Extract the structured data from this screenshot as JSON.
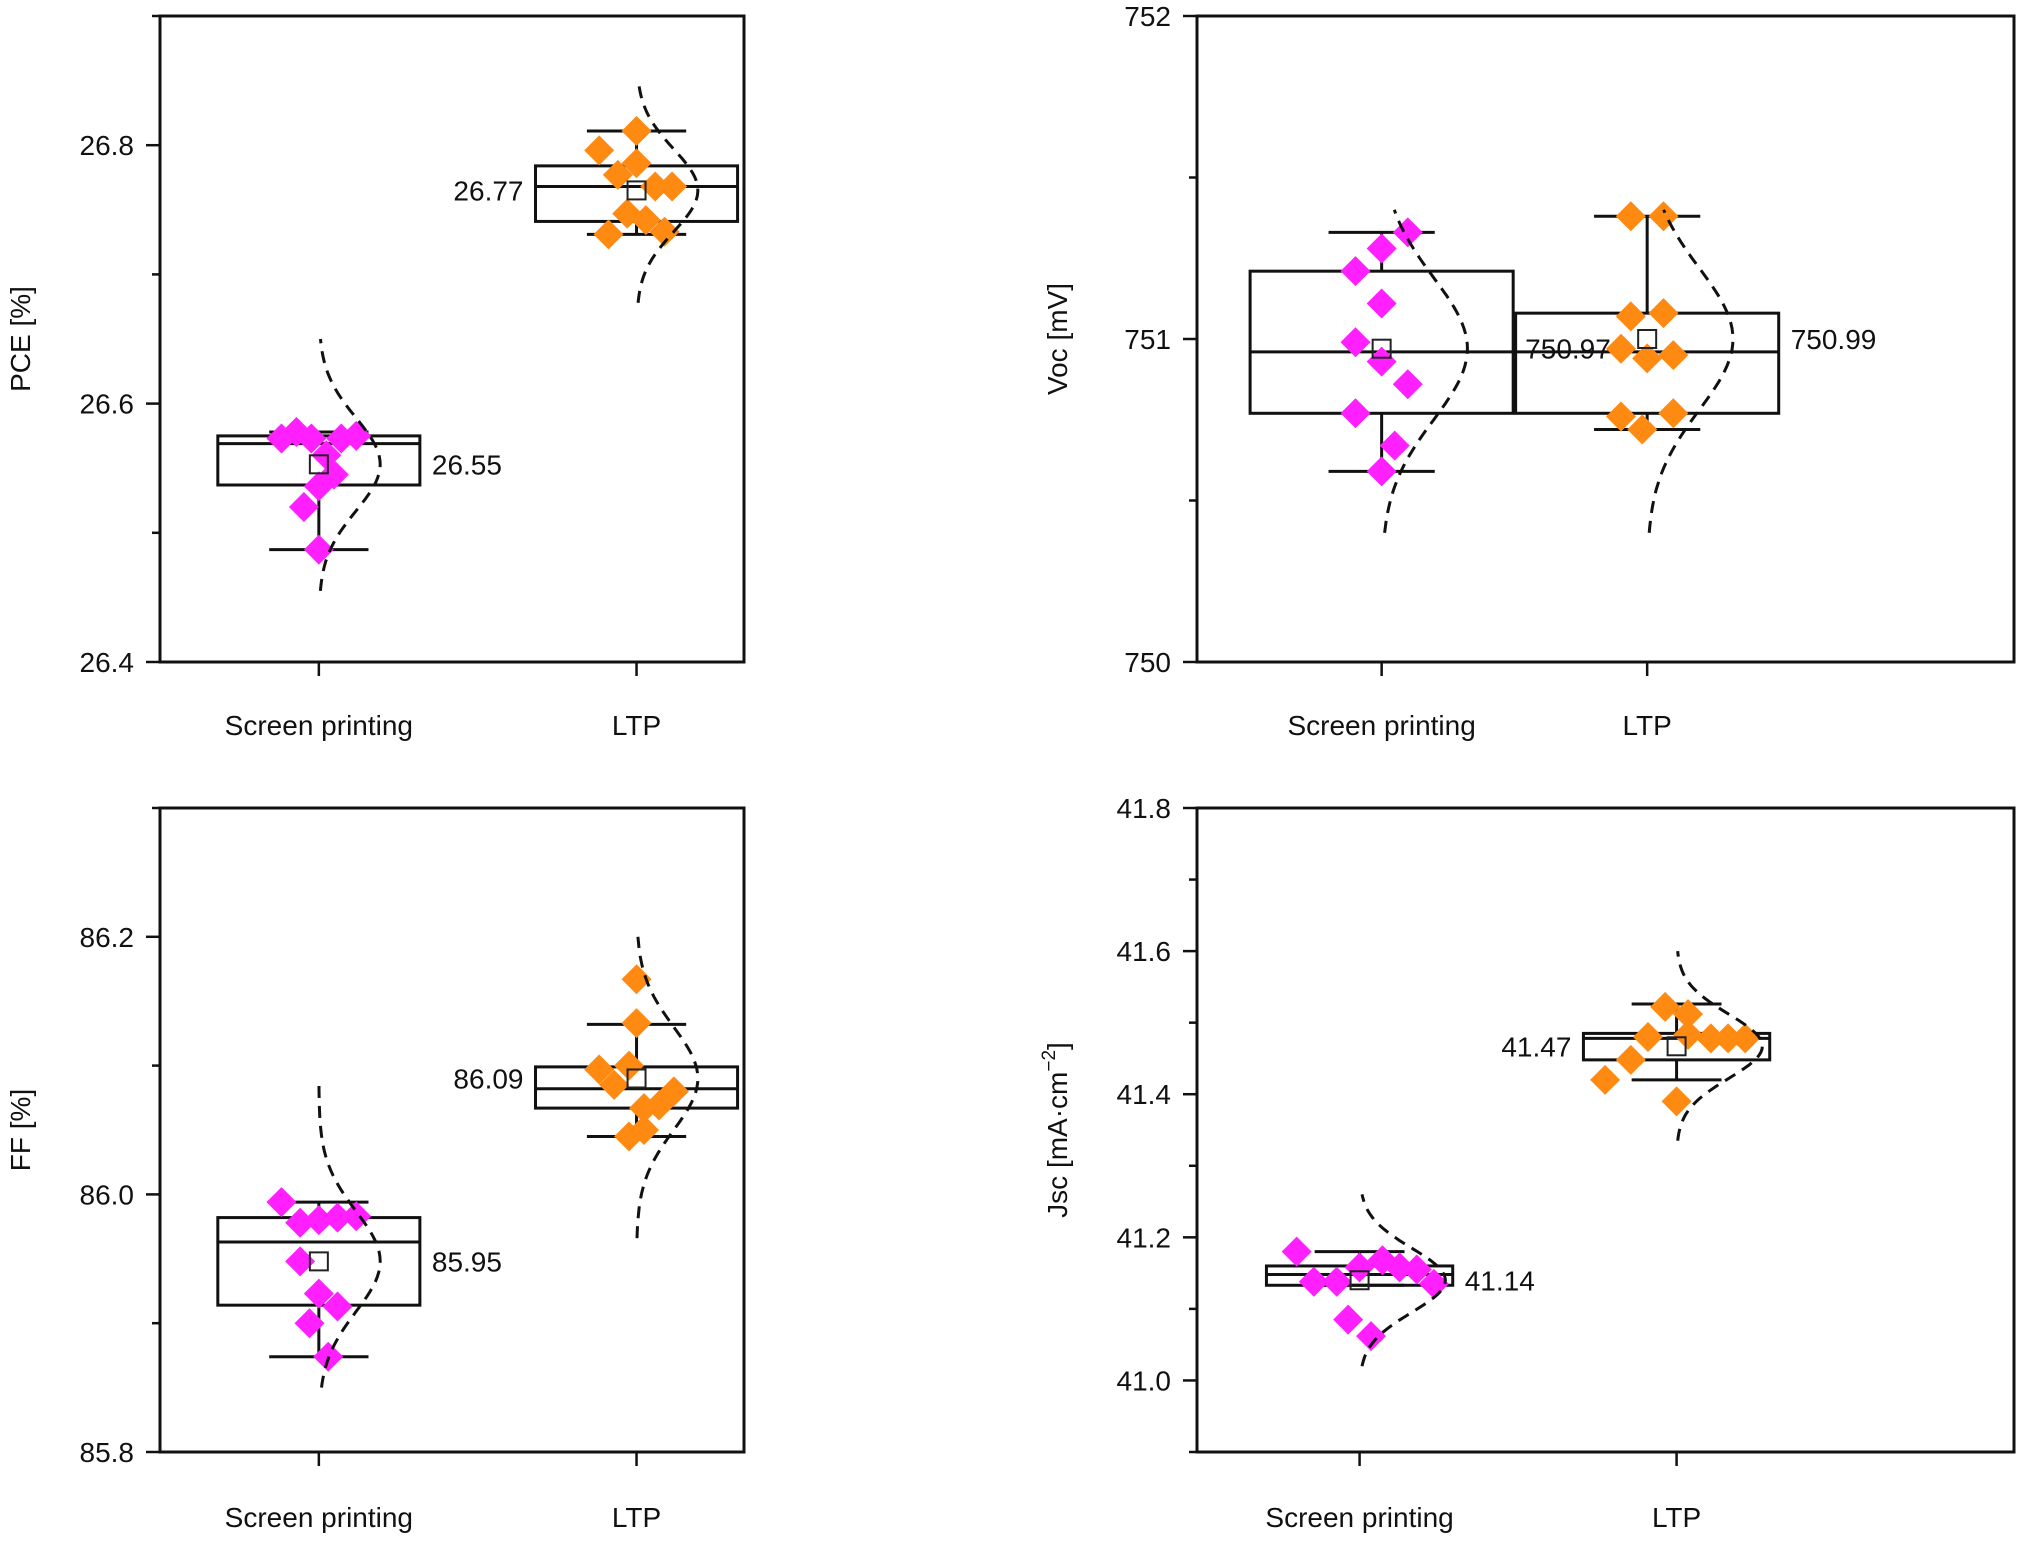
{
  "colors": {
    "screen_printing": "#ff1fff",
    "ltp": "#ff8a12",
    "axis": "#111111",
    "box": "#111111"
  },
  "chart_data": [
    {
      "id": "pce",
      "type": "box",
      "ylabel": "PCE [%]",
      "ylim": [
        26.4,
        26.9
      ],
      "yticks": [
        26.4,
        26.6,
        26.8
      ],
      "yticklabels": [
        "26.4",
        "26.6",
        "26.8"
      ],
      "minor_step": 0.1,
      "categories": [
        "Screen printing",
        "LTP"
      ],
      "groups": [
        {
          "name": "Screen printing",
          "color_key": "screen_printing",
          "mean": 26.553,
          "mean_label": "26.55",
          "label_side": "right",
          "box": {
            "q1": 26.537,
            "median": 26.569,
            "q3": 26.575,
            "whisker_low": 26.487,
            "whisker_high": 26.578
          },
          "points": [
            {
              "dx": -0.2,
              "y": 26.573
            },
            {
              "dx": -0.12,
              "y": 26.578
            },
            {
              "dx": -0.04,
              "y": 26.573
            },
            {
              "dx": 0.04,
              "y": 26.56
            },
            {
              "dx": 0.08,
              "y": 26.545
            },
            {
              "dx": 0.12,
              "y": 26.573
            },
            {
              "dx": 0.2,
              "y": 26.575
            },
            {
              "dx": -0.08,
              "y": 26.52
            },
            {
              "dx": 0.0,
              "y": 26.536
            },
            {
              "dx": 0.0,
              "y": 26.487
            }
          ],
          "dist": {
            "mu": 26.553,
            "sigma": 0.036,
            "ymin": 26.455,
            "ymax": 26.65
          }
        },
        {
          "name": "LTP",
          "color_key": "ltp",
          "mean": 26.765,
          "mean_label": "26.77",
          "label_side": "left",
          "box": {
            "q1": 26.741,
            "median": 26.768,
            "q3": 26.784,
            "whisker_low": 26.731,
            "whisker_high": 26.811
          },
          "points": [
            {
              "dx": -0.2,
              "y": 26.796
            },
            {
              "dx": -0.1,
              "y": 26.777
            },
            {
              "dx": 0.0,
              "y": 26.811
            },
            {
              "dx": 0.0,
              "y": 26.786
            },
            {
              "dx": 0.1,
              "y": 26.768
            },
            {
              "dx": 0.19,
              "y": 26.768
            },
            {
              "dx": -0.15,
              "y": 26.731
            },
            {
              "dx": -0.05,
              "y": 26.747
            },
            {
              "dx": 0.05,
              "y": 26.742
            },
            {
              "dx": 0.15,
              "y": 26.733
            }
          ],
          "dist": {
            "mu": 26.765,
            "sigma": 0.032,
            "ymin": 26.678,
            "ymax": 26.85
          }
        }
      ]
    },
    {
      "id": "voc",
      "type": "box",
      "ylabel": "Voc [mV]",
      "ylim": [
        750,
        752
      ],
      "yticks": [
        750,
        751,
        752
      ],
      "yticklabels": [
        "750",
        "751",
        "752"
      ],
      "minor_step": 0.5,
      "categories": [
        "Screen printing",
        "LTP"
      ],
      "groups": [
        {
          "name": "Screen printing",
          "color_key": "screen_printing",
          "mean": 750.97,
          "mean_label": "750.97",
          "label_side": "right",
          "box": {
            "q1": 750.77,
            "median": 750.96,
            "q3": 751.21,
            "whisker_low": 750.59,
            "whisker_high": 751.33
          },
          "points": [
            {
              "dx": -0.16,
              "y": 751.21
            },
            {
              "dx": 0.0,
              "y": 751.28
            },
            {
              "dx": 0.16,
              "y": 751.33
            },
            {
              "dx": 0.0,
              "y": 751.11
            },
            {
              "dx": -0.16,
              "y": 750.99
            },
            {
              "dx": 0.0,
              "y": 750.93
            },
            {
              "dx": 0.16,
              "y": 750.86
            },
            {
              "dx": -0.16,
              "y": 750.77
            },
            {
              "dx": 0.08,
              "y": 750.67
            },
            {
              "dx": 0.0,
              "y": 750.59
            }
          ],
          "dist": {
            "mu": 750.97,
            "sigma": 0.22,
            "ymin": 750.4,
            "ymax": 751.4
          }
        },
        {
          "name": "LTP",
          "color_key": "ltp",
          "mean": 751.0,
          "mean_label": "750.99",
          "label_side": "right",
          "box": {
            "q1": 750.77,
            "median": 750.96,
            "q3": 751.08,
            "whisker_low": 750.72,
            "whisker_high": 751.38
          },
          "points": [
            {
              "dx": -0.1,
              "y": 751.38
            },
            {
              "dx": 0.1,
              "y": 751.38
            },
            {
              "dx": -0.1,
              "y": 751.07
            },
            {
              "dx": 0.1,
              "y": 751.08
            },
            {
              "dx": -0.16,
              "y": 750.97
            },
            {
              "dx": 0.0,
              "y": 750.94
            },
            {
              "dx": 0.16,
              "y": 750.95
            },
            {
              "dx": -0.16,
              "y": 750.76
            },
            {
              "dx": 0.16,
              "y": 750.77
            },
            {
              "dx": -0.03,
              "y": 750.72
            }
          ],
          "dist": {
            "mu": 751.0,
            "sigma": 0.22,
            "ymin": 750.4,
            "ymax": 751.4
          }
        }
      ]
    },
    {
      "id": "ff",
      "type": "box",
      "ylabel": "FF [%]",
      "ylim": [
        85.8,
        86.3
      ],
      "yticks": [
        85.8,
        86.0,
        86.2
      ],
      "yticklabels": [
        "85.8",
        "86.0",
        "86.2"
      ],
      "minor_step": 0.1,
      "categories": [
        "Screen printing",
        "LTP"
      ],
      "groups": [
        {
          "name": "Screen printing",
          "color_key": "screen_printing",
          "mean": 85.948,
          "mean_label": "85.95",
          "label_side": "right",
          "box": {
            "q1": 85.914,
            "median": 85.963,
            "q3": 85.982,
            "whisker_low": 85.874,
            "whisker_high": 85.994
          },
          "points": [
            {
              "dx": -0.2,
              "y": 85.994
            },
            {
              "dx": -0.1,
              "y": 85.978
            },
            {
              "dx": 0.0,
              "y": 85.98
            },
            {
              "dx": 0.1,
              "y": 85.982
            },
            {
              "dx": 0.2,
              "y": 85.983
            },
            {
              "dx": -0.1,
              "y": 85.948
            },
            {
              "dx": 0.0,
              "y": 85.923
            },
            {
              "dx": 0.1,
              "y": 85.913
            },
            {
              "dx": -0.05,
              "y": 85.9
            },
            {
              "dx": 0.05,
              "y": 85.874
            }
          ],
          "dist": {
            "mu": 85.948,
            "sigma": 0.039,
            "ymin": 85.85,
            "ymax": 86.085
          }
        },
        {
          "name": "LTP",
          "color_key": "ltp",
          "mean": 86.09,
          "mean_label": "86.09",
          "label_side": "left",
          "box": {
            "q1": 86.067,
            "median": 86.082,
            "q3": 86.099,
            "whisker_low": 86.045,
            "whisker_high": 86.132
          },
          "points": [
            {
              "dx": 0.0,
              "y": 86.167
            },
            {
              "dx": 0.0,
              "y": 86.133
            },
            {
              "dx": -0.2,
              "y": 86.097
            },
            {
              "dx": -0.12,
              "y": 86.085
            },
            {
              "dx": -0.04,
              "y": 86.1
            },
            {
              "dx": 0.04,
              "y": 86.067
            },
            {
              "dx": 0.12,
              "y": 86.069
            },
            {
              "dx": 0.2,
              "y": 86.08
            },
            {
              "dx": -0.04,
              "y": 86.045
            },
            {
              "dx": 0.04,
              "y": 86.05
            }
          ],
          "dist": {
            "mu": 86.09,
            "sigma": 0.04,
            "ymin": 85.966,
            "ymax": 86.2
          }
        }
      ]
    },
    {
      "id": "jsc",
      "type": "box",
      "ylabel": "Jsc [mA·cm⁻²]",
      "ylim": [
        40.9,
        41.8
      ],
      "yticks": [
        41.0,
        41.2,
        41.4,
        41.6,
        41.8
      ],
      "yticklabels": [
        "41.0",
        "41.2",
        "41.4",
        "41.6",
        "41.8"
      ],
      "minor_step": 0.1,
      "categories": [
        "Screen printing",
        "LTP"
      ],
      "groups": [
        {
          "name": "Screen printing",
          "color_key": "screen_printing",
          "mean": 41.14,
          "mean_label": "41.14",
          "label_side": "right",
          "box": {
            "q1": 41.133,
            "median": 41.148,
            "q3": 41.16,
            "whisker_low": 41.133,
            "whisker_high": 41.18
          },
          "points": [
            {
              "dx": -0.22,
              "y": 41.18
            },
            {
              "dx": -0.16,
              "y": 41.138
            },
            {
              "dx": -0.08,
              "y": 41.138
            },
            {
              "dx": 0.0,
              "y": 41.158
            },
            {
              "dx": 0.08,
              "y": 41.168
            },
            {
              "dx": 0.14,
              "y": 41.158
            },
            {
              "dx": 0.2,
              "y": 41.155
            },
            {
              "dx": 0.26,
              "y": 41.135
            },
            {
              "dx": -0.04,
              "y": 41.085
            },
            {
              "dx": 0.04,
              "y": 41.062
            }
          ],
          "dist": {
            "mu": 41.14,
            "sigma": 0.045,
            "ymin": 41.02,
            "ymax": 41.26
          }
        },
        {
          "name": "LTP",
          "color_key": "ltp",
          "mean": 41.467,
          "mean_label": "41.47",
          "label_side": "left",
          "box": {
            "q1": 41.448,
            "median": 41.478,
            "q3": 41.485,
            "whisker_low": 41.42,
            "whisker_high": 41.526
          },
          "points": [
            {
              "dx": -0.25,
              "y": 41.42
            },
            {
              "dx": -0.16,
              "y": 41.448
            },
            {
              "dx": -0.1,
              "y": 41.48
            },
            {
              "dx": -0.04,
              "y": 41.522
            },
            {
              "dx": 0.04,
              "y": 41.512
            },
            {
              "dx": 0.04,
              "y": 41.483
            },
            {
              "dx": 0.12,
              "y": 41.478
            },
            {
              "dx": 0.18,
              "y": 41.478
            },
            {
              "dx": 0.24,
              "y": 41.478
            },
            {
              "dx": 0.0,
              "y": 41.39
            }
          ],
          "dist": {
            "mu": 41.467,
            "sigma": 0.045,
            "ymin": 41.335,
            "ymax": 41.6
          }
        }
      ]
    }
  ]
}
